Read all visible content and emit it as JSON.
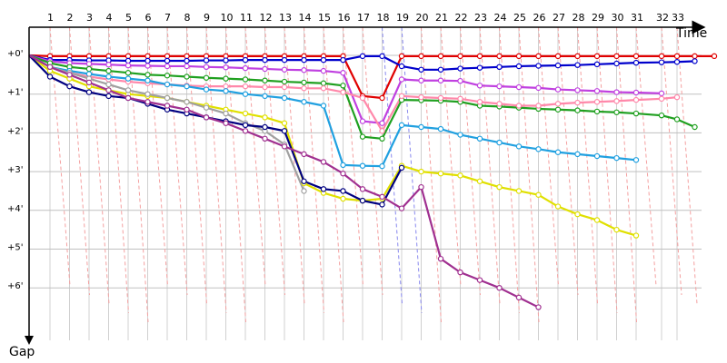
{
  "chart_data": {
    "type": "line",
    "title": "",
    "xlabel": "Time",
    "ylabel": "Gap",
    "x_ticks": [
      "1",
      "2",
      "3",
      "4",
      "5",
      "6",
      "7",
      "8",
      "9",
      "10",
      "11",
      "12",
      "13",
      "14",
      "15",
      "16",
      "17",
      "18",
      "19",
      "20",
      "21",
      "22",
      "23",
      "24",
      "25",
      "26",
      "27",
      "28",
      "29",
      "30",
      "31",
      "32",
      "33"
    ],
    "y_ticks": [
      {
        "label": "+0'",
        "value": 0
      },
      {
        "label": "+1'",
        "value": 1
      },
      {
        "label": "+2'",
        "value": 2
      },
      {
        "label": "+3'",
        "value": 3
      },
      {
        "label": "+4'",
        "value": 4
      },
      {
        "label": "+5'",
        "value": 5
      },
      {
        "label": "+6'",
        "value": 6
      }
    ],
    "y_unit": "minutes",
    "grid": true,
    "series": [
      {
        "color": "#e00000",
        "values": [
          0,
          0.02,
          0.02,
          0.02,
          0.02,
          0.02,
          0.02,
          0.02,
          0.02,
          0.02,
          0.02,
          0.02,
          0.02,
          0.02,
          0.02,
          0.02,
          0.02,
          1.05,
          1.1,
          0.02,
          0.02,
          0.02,
          0.02,
          0.02,
          0.02,
          0.02,
          0.02,
          0.02,
          0.02,
          0.02,
          0.02,
          0.02,
          0.02,
          0.02,
          0.02,
          0.02
        ]
      },
      {
        "color": "#0000cc",
        "values": [
          0,
          0.12,
          0.12,
          0.13,
          0.13,
          0.14,
          0.14,
          0.14,
          0.14,
          0.13,
          0.13,
          0.12,
          0.12,
          0.12,
          0.12,
          0.12,
          0.12,
          0.02,
          0.02,
          0.28,
          0.37,
          0.37,
          0.34,
          0.32,
          0.3,
          0.28,
          0.27,
          0.26,
          0.25,
          0.23,
          0.21,
          0.19,
          0.18,
          0.17,
          0.15
        ]
      },
      {
        "color": "#c040e0",
        "values": [
          0,
          0.15,
          0.2,
          0.22,
          0.24,
          0.26,
          0.27,
          0.28,
          0.28,
          0.3,
          0.31,
          0.33,
          0.35,
          0.37,
          0.38,
          0.4,
          0.45,
          1.7,
          1.75,
          0.62,
          0.65,
          0.65,
          0.66,
          0.78,
          0.8,
          0.82,
          0.84,
          0.88,
          0.9,
          0.92,
          0.95,
          0.96,
          0.98
        ]
      },
      {
        "color": "#20a020",
        "values": [
          0,
          0.2,
          0.3,
          0.35,
          0.4,
          0.45,
          0.5,
          0.52,
          0.55,
          0.58,
          0.6,
          0.62,
          0.65,
          0.68,
          0.7,
          0.72,
          0.78,
          2.1,
          2.15,
          1.15,
          1.16,
          1.17,
          1.2,
          1.3,
          1.32,
          1.35,
          1.38,
          1.4,
          1.42,
          1.45,
          1.47,
          1.5,
          1.55,
          1.65,
          1.85
        ]
      },
      {
        "color": "#ff88aa",
        "values": [
          0,
          0.3,
          0.45,
          0.55,
          0.62,
          0.68,
          0.72,
          0.75,
          0.78,
          0.8,
          0.8,
          0.8,
          0.82,
          0.82,
          0.85,
          0.85,
          0.95,
          1.1,
          1.95,
          1.05,
          1.08,
          1.1,
          1.12,
          1.2,
          1.25,
          1.3,
          1.3,
          1.25,
          1.22,
          1.2,
          1.18,
          1.15,
          1.12,
          1.08
        ]
      },
      {
        "color": "#20a0e0",
        "values": [
          0,
          0.3,
          0.4,
          0.48,
          0.55,
          0.6,
          0.65,
          0.75,
          0.8,
          0.88,
          0.92,
          1,
          1.05,
          1.1,
          1.2,
          1.3,
          2.83,
          2.85,
          2.86,
          1.8,
          1.85,
          1.9,
          2.05,
          2.15,
          2.25,
          2.35,
          2.42,
          2.5,
          2.55,
          2.6,
          2.65,
          2.7
        ]
      },
      {
        "color": "#e0e000",
        "values": [
          0,
          0.4,
          0.6,
          0.8,
          0.9,
          1,
          1.05,
          1.1,
          1.2,
          1.3,
          1.4,
          1.5,
          1.6,
          1.75,
          3.3,
          3.55,
          3.7,
          3.75,
          3.7,
          2.85,
          3,
          3.05,
          3.1,
          3.25,
          3.4,
          3.5,
          3.6,
          3.9,
          4.1,
          4.25,
          4.5,
          4.65
        ]
      },
      {
        "color": "#a0a0a0",
        "values": [
          0,
          0.3,
          0.45,
          0.6,
          0.75,
          0.9,
          1,
          1.1,
          1.2,
          1.35,
          1.5,
          1.75,
          1.95,
          2.3,
          3.5
        ]
      },
      {
        "color": "#000080",
        "values": [
          0,
          0.55,
          0.8,
          0.95,
          1.05,
          1.1,
          1.25,
          1.4,
          1.5,
          1.6,
          1.7,
          1.8,
          1.85,
          1.95,
          3.25,
          3.45,
          3.5,
          3.75,
          3.85,
          2.9
        ]
      },
      {
        "color": "#a03090",
        "values": [
          0,
          0.3,
          0.5,
          0.7,
          0.9,
          1.1,
          1.2,
          1.3,
          1.4,
          1.6,
          1.75,
          1.95,
          2.15,
          2.35,
          2.55,
          2.75,
          3.05,
          3.45,
          3.65,
          3.95,
          3.4,
          5.25,
          5.6,
          5.8,
          6.0,
          6.25,
          6.5
        ]
      }
    ]
  }
}
